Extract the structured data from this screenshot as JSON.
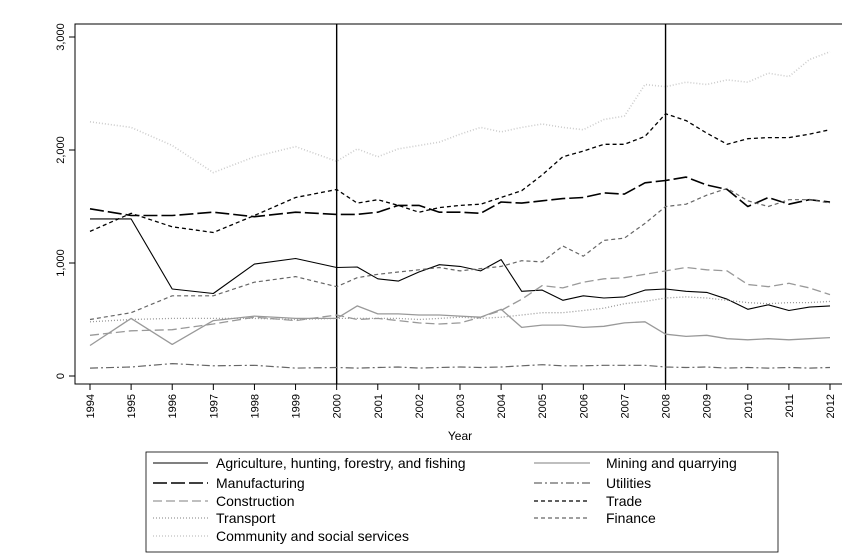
{
  "chart_data": {
    "type": "line",
    "xlabel": "Year",
    "ylabel": "",
    "title": "",
    "ylim": [
      0,
      3000
    ],
    "xlim": [
      1994,
      2012
    ],
    "x_ticks": [
      "1994",
      "1995",
      "1996",
      "1997",
      "1998",
      "1999",
      "2000",
      "2001",
      "2002",
      "2003",
      "2004",
      "2005",
      "2006",
      "2007",
      "2008",
      "2009",
      "2010",
      "2011",
      "2012"
    ],
    "y_ticks": [
      {
        "value": 0,
        "label": "0"
      },
      {
        "value": 1000,
        "label": "1,000"
      },
      {
        "value": 2000,
        "label": "2,000"
      },
      {
        "value": 3000,
        "label": "3,000"
      }
    ],
    "vertical_lines": [
      2000,
      2008
    ],
    "grid": false,
    "legend_position": "bottom",
    "series": [
      {
        "name": "Agriculture, hunting, forestry, and fishing",
        "style": "solid",
        "color": "#000000",
        "width": 1.1,
        "x": [
          1994,
          1995,
          1996,
          1997,
          1998,
          1999,
          2000,
          2000.5,
          2001,
          2001.5,
          2002,
          2002.5,
          2003,
          2003.5,
          2004,
          2004.5,
          2005,
          2005.5,
          2006,
          2006.5,
          2007,
          2007.5,
          2008,
          2008.5,
          2009,
          2009.5,
          2010,
          2010.5,
          2011,
          2011.5,
          2012
        ],
        "y": [
          1390,
          1390,
          770,
          730,
          990,
          1040,
          960,
          965,
          860,
          840,
          920,
          985,
          970,
          930,
          1030,
          750,
          760,
          670,
          710,
          690,
          700,
          760,
          770,
          750,
          740,
          680,
          590,
          630,
          580,
          610,
          620
        ]
      },
      {
        "name": "Mining and quarrying",
        "style": "solid",
        "color": "#999999",
        "width": 1.3,
        "x": [
          1994,
          1995,
          1996,
          1997,
          1998,
          1999,
          2000,
          2000.5,
          2001,
          2001.5,
          2002,
          2002.5,
          2003,
          2003.5,
          2004,
          2004.5,
          2005,
          2005.5,
          2006,
          2006.5,
          2007,
          2007.5,
          2008,
          2008.5,
          2009,
          2009.5,
          2010,
          2010.5,
          2011,
          2011.5,
          2012
        ],
        "y": [
          270,
          510,
          280,
          490,
          530,
          510,
          510,
          620,
          550,
          550,
          540,
          540,
          530,
          520,
          590,
          430,
          450,
          450,
          430,
          440,
          470,
          480,
          370,
          350,
          360,
          330,
          320,
          330,
          320,
          330,
          340
        ]
      },
      {
        "name": "Manufacturing",
        "style": "longdash",
        "color": "#000000",
        "width": 1.6,
        "x": [
          1994,
          1995,
          1996,
          1997,
          1998,
          1999,
          2000,
          2000.5,
          2001,
          2001.5,
          2002,
          2002.5,
          2003,
          2003.5,
          2004,
          2004.5,
          2005,
          2005.5,
          2006,
          2006.5,
          2007,
          2007.5,
          2008,
          2008.5,
          2009,
          2009.5,
          2010,
          2010.5,
          2011,
          2011.5,
          2012
        ],
        "y": [
          1480,
          1420,
          1420,
          1450,
          1410,
          1450,
          1430,
          1430,
          1450,
          1510,
          1510,
          1450,
          1450,
          1440,
          1540,
          1530,
          1550,
          1570,
          1580,
          1620,
          1610,
          1710,
          1730,
          1760,
          1690,
          1650,
          1500,
          1580,
          1520,
          1560,
          1540
        ]
      },
      {
        "name": "Utilities",
        "style": "dashdot",
        "color": "#666666",
        "width": 1.2,
        "x": [
          1994,
          1995,
          1996,
          1997,
          1998,
          1999,
          2000,
          2000.5,
          2001,
          2001.5,
          2002,
          2002.5,
          2003,
          2003.5,
          2004,
          2004.5,
          2005,
          2005.5,
          2006,
          2006.5,
          2007,
          2007.5,
          2008,
          2008.5,
          2009,
          2009.5,
          2010,
          2010.5,
          2011,
          2011.5,
          2012
        ],
        "y": [
          70,
          80,
          110,
          90,
          95,
          70,
          75,
          70,
          75,
          80,
          70,
          75,
          80,
          75,
          80,
          90,
          100,
          90,
          90,
          95,
          95,
          95,
          80,
          75,
          80,
          70,
          75,
          70,
          75,
          70,
          75
        ]
      },
      {
        "name": "Construction",
        "style": "dash",
        "color": "#999999",
        "width": 1.3,
        "x": [
          1994,
          1995,
          1996,
          1997,
          1998,
          1999,
          2000,
          2000.5,
          2001,
          2001.5,
          2002,
          2002.5,
          2003,
          2003.5,
          2004,
          2004.5,
          2005,
          2005.5,
          2006,
          2006.5,
          2007,
          2007.5,
          2008,
          2008.5,
          2009,
          2009.5,
          2010,
          2010.5,
          2011,
          2011.5,
          2012
        ],
        "y": [
          360,
          400,
          410,
          460,
          520,
          490,
          540,
          500,
          510,
          490,
          470,
          460,
          470,
          520,
          580,
          680,
          800,
          780,
          830,
          860,
          870,
          900,
          930,
          960,
          940,
          930,
          810,
          790,
          820,
          780,
          720
        ]
      },
      {
        "name": "Trade",
        "style": "shortdash",
        "color": "#000000",
        "width": 1.3,
        "x": [
          1994,
          1995,
          1996,
          1997,
          1998,
          1999,
          2000,
          2000.5,
          2001,
          2001.5,
          2002,
          2002.5,
          2003,
          2003.5,
          2004,
          2004.5,
          2005,
          2005.5,
          2006,
          2006.5,
          2007,
          2007.5,
          2008,
          2008.5,
          2009,
          2009.5,
          2010,
          2010.5,
          2011,
          2011.5,
          2012
        ],
        "y": [
          1280,
          1440,
          1320,
          1270,
          1420,
          1580,
          1650,
          1530,
          1560,
          1510,
          1450,
          1490,
          1510,
          1520,
          1580,
          1640,
          1780,
          1940,
          1990,
          2050,
          2050,
          2120,
          2320,
          2260,
          2150,
          2050,
          2100,
          2110,
          2110,
          2140,
          2180
        ]
      },
      {
        "name": "Transport",
        "style": "dot",
        "color": "#999999",
        "width": 1.3,
        "x": [
          1994,
          1995,
          1996,
          1997,
          1998,
          1999,
          2000,
          2000.5,
          2001,
          2001.5,
          2002,
          2002.5,
          2003,
          2003.5,
          2004,
          2004.5,
          2005,
          2005.5,
          2006,
          2006.5,
          2007,
          2007.5,
          2008,
          2008.5,
          2009,
          2009.5,
          2010,
          2010.5,
          2011,
          2011.5,
          2012
        ],
        "y": [
          480,
          500,
          510,
          510,
          510,
          500,
          510,
          510,
          510,
          510,
          500,
          510,
          520,
          510,
          520,
          540,
          560,
          560,
          580,
          600,
          640,
          660,
          690,
          700,
          690,
          670,
          650,
          640,
          650,
          650,
          660
        ]
      },
      {
        "name": "Finance",
        "style": "shortdash",
        "color": "#666666",
        "width": 1.2,
        "x": [
          1994,
          1995,
          1996,
          1997,
          1998,
          1999,
          2000,
          2000.5,
          2001,
          2001.5,
          2002,
          2002.5,
          2003,
          2003.5,
          2004,
          2004.5,
          2005,
          2005.5,
          2006,
          2006.5,
          2007,
          2007.5,
          2008,
          2008.5,
          2009,
          2009.5,
          2010,
          2010.5,
          2011,
          2011.5,
          2012
        ],
        "y": [
          500,
          560,
          710,
          710,
          830,
          880,
          790,
          870,
          900,
          920,
          940,
          960,
          930,
          950,
          970,
          1020,
          1010,
          1150,
          1060,
          1200,
          1220,
          1350,
          1500,
          1520,
          1600,
          1660,
          1550,
          1500,
          1560,
          1560,
          1530
        ]
      },
      {
        "name": "Community and social services",
        "style": "dot",
        "color": "#cccccc",
        "width": 1.6,
        "x": [
          1994,
          1995,
          1996,
          1997,
          1998,
          1999,
          2000,
          2000.5,
          2001,
          2001.5,
          2002,
          2002.5,
          2003,
          2003.5,
          2004,
          2004.5,
          2005,
          2005.5,
          2006,
          2006.5,
          2007,
          2007.5,
          2008,
          2008.5,
          2009,
          2009.5,
          2010,
          2010.5,
          2011,
          2011.5,
          2012
        ],
        "y": [
          2250,
          2200,
          2040,
          1800,
          1940,
          2030,
          1900,
          2010,
          1940,
          2010,
          2040,
          2070,
          2140,
          2200,
          2160,
          2200,
          2230,
          2200,
          2180,
          2270,
          2300,
          2580,
          2560,
          2600,
          2580,
          2620,
          2600,
          2680,
          2650,
          2800,
          2870
        ]
      }
    ]
  }
}
